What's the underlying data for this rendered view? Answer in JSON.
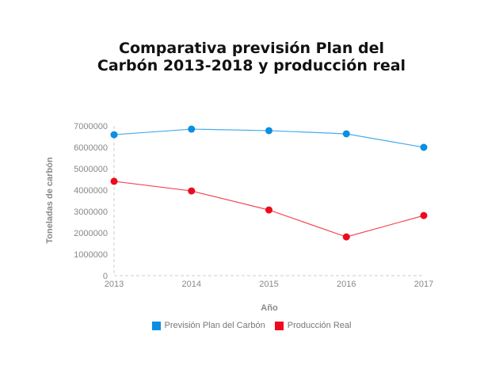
{
  "chart_data": {
    "type": "line",
    "title": [
      "Comparativa previsión Plan del",
      "Carbón 2013-2018 y producción real"
    ],
    "xlabel": "Año",
    "ylabel": "Toneladas de carbón",
    "x": [
      "2013",
      "2014",
      "2015",
      "2016",
      "2017"
    ],
    "ylim": [
      0,
      7000000
    ],
    "yticks": [
      "0",
      "1000000",
      "2000000",
      "3000000",
      "4000000",
      "5000000",
      "6000000",
      "7000000"
    ],
    "grid": false,
    "legend_position": "bottom",
    "series": [
      {
        "name": "Previsión Plan del Carbón",
        "color": "#0a8fe3",
        "values": [
          6590000,
          6850000,
          6780000,
          6630000,
          6000000
        ]
      },
      {
        "name": "Producción Real",
        "color": "#ee0a1d",
        "values": [
          4410000,
          3960000,
          3070000,
          1810000,
          2810000
        ]
      }
    ]
  }
}
